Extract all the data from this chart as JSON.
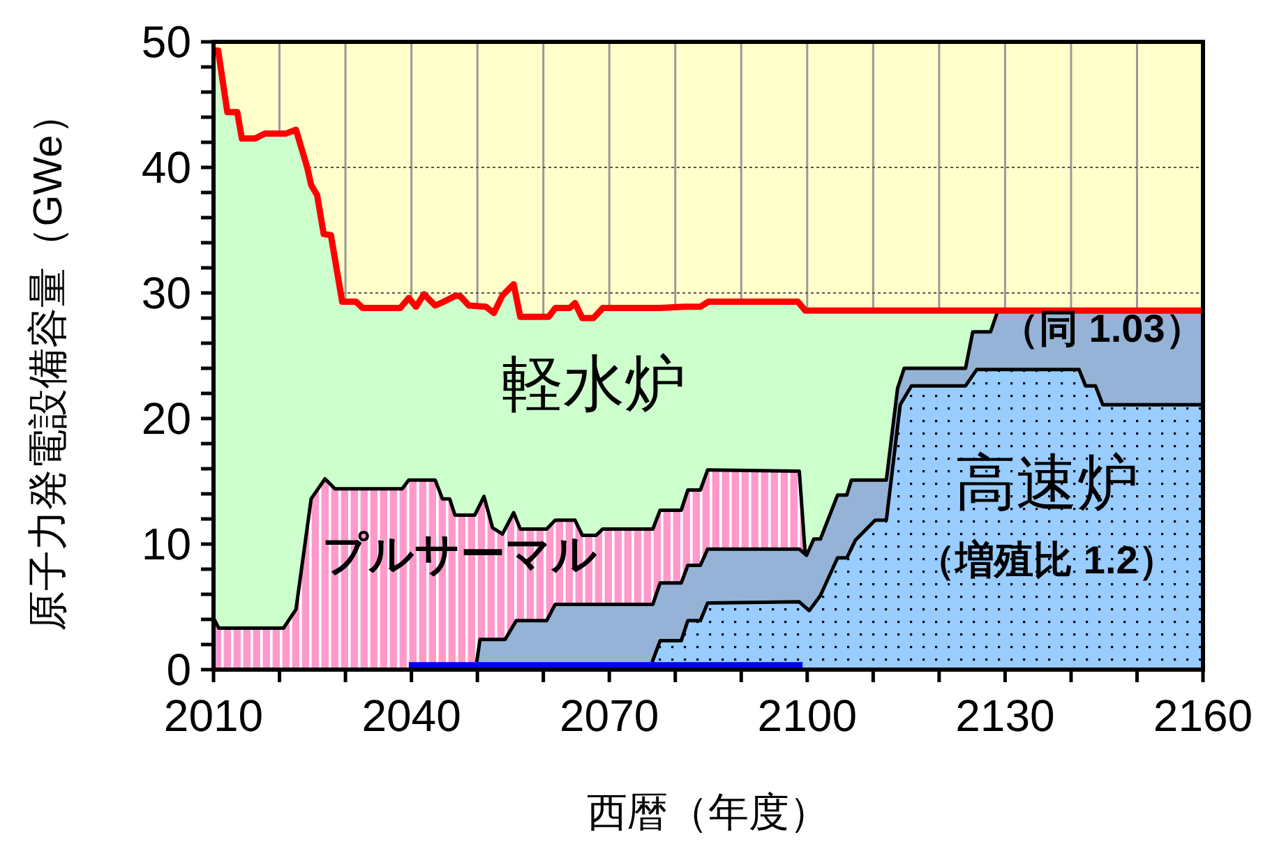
{
  "chart_data": {
    "type": "area",
    "xlabel": "西暦（年度）",
    "ylabel": "原子力発電設備容量（GWe）",
    "xlim": [
      2010,
      2160
    ],
    "xticks": [
      2010,
      {
        "value": 2020,
        "label": null
      },
      {
        "value": 2030,
        "label": null
      },
      2040,
      {
        "value": 2050,
        "label": null
      },
      {
        "value": 2060,
        "label": null
      },
      2070,
      {
        "value": 2080,
        "label": null
      },
      {
        "value": 2090,
        "label": null
      },
      2100,
      {
        "value": 2110,
        "label": null
      },
      {
        "value": 2120,
        "label": null
      },
      2130,
      {
        "value": 2140,
        "label": null
      },
      {
        "value": 2150,
        "label": null
      },
      2160
    ],
    "ylim": [
      0,
      50
    ],
    "yticks": [
      0,
      {
        "value": 2,
        "label": null
      },
      {
        "value": 4,
        "label": null
      },
      {
        "value": 6,
        "label": null
      },
      {
        "value": 8,
        "label": null
      },
      10,
      {
        "value": 12,
        "label": null
      },
      {
        "value": 14,
        "label": null
      },
      {
        "value": 16,
        "label": null
      },
      {
        "value": 18,
        "label": null
      },
      20,
      {
        "value": 22,
        "label": null
      },
      {
        "value": 24,
        "label": null
      },
      {
        "value": 26,
        "label": null
      },
      {
        "value": 28,
        "label": null
      },
      30,
      {
        "value": 32,
        "label": null
      },
      {
        "value": 34,
        "label": null
      },
      {
        "value": 36,
        "label": null
      },
      {
        "value": 38,
        "label": null
      },
      40,
      {
        "value": 42,
        "label": null
      },
      {
        "value": 44,
        "label": null
      },
      {
        "value": 46,
        "label": null
      },
      {
        "value": 48,
        "label": null
      },
      50
    ],
    "grid": true,
    "series": [
      {
        "name": "軽水炉",
        "color": "#ccffcc",
        "x": [
          2010,
          2010.7,
          2012.1,
          2013.6,
          2014.3,
          2016.3,
          2017.8,
          2021,
          2022.5,
          2024.2,
          2024.8,
          2025.7,
          2026.7,
          2027.8,
          2029.5,
          2031.6,
          2032.6,
          2038.3,
          2039.6,
          2040.7,
          2041.9,
          2043.6,
          2044.9,
          2046.8,
          2047.5,
          2048.7,
          2051.3,
          2052.5,
          2053.8,
          2055.5,
          2056.5,
          2060.8,
          2061.8,
          2064,
          2064.8,
          2065.9,
          2067.6,
          2069,
          2077.7,
          2081.3,
          2083.8,
          2085,
          2098.6,
          2099.7,
          2160
        ],
        "values": [
          49.3,
          49.3,
          44.4,
          44.4,
          42.3,
          42.3,
          42.7,
          42.7,
          43.0,
          40,
          38.6,
          37.8,
          34.7,
          34.6,
          29.3,
          29.3,
          28.8,
          28.8,
          29.6,
          28.9,
          29.9,
          29.0,
          29.3,
          29.8,
          29.7,
          29.0,
          28.9,
          28.4,
          29.8,
          30.7,
          28.1,
          28.1,
          28.8,
          28.8,
          29.2,
          28.0,
          28.0,
          28.8,
          28.8,
          28.9,
          28.9,
          29.3,
          29.3,
          28.6,
          28.6
        ]
      },
      {
        "name": "プルサーマル",
        "color": "#ff99cc",
        "x": [
          2010,
          2010.8,
          2020.6,
          2022.5,
          2024.8,
          2026.9,
          2028.4,
          2038.6,
          2039.6,
          2043.6,
          2044.7,
          2045.8,
          2046.6,
          2049.6,
          2051,
          2052.3,
          2053.8,
          2055.5,
          2056.5,
          2060.5,
          2061.8,
          2064.8,
          2065.9,
          2068,
          2069,
          2076.6,
          2077.7,
          2080.9,
          2081.9,
          2083.8,
          2084.9,
          2098.8,
          2099.7
        ],
        "values": [
          4.1,
          3.3,
          3.3,
          4.8,
          13.6,
          15.2,
          14.4,
          14.4,
          15.1,
          15.1,
          13.6,
          13.6,
          12.3,
          12.3,
          13.8,
          11.3,
          10.8,
          12.5,
          11.2,
          11.2,
          11.9,
          11.9,
          10.7,
          10.7,
          11.2,
          11.2,
          12.7,
          12.7,
          14.3,
          14.3,
          15.9,
          15.8,
          9.2
        ]
      },
      {
        "name": "（同 1.03）",
        "color": "#95b3d7",
        "x": [
          2049.9,
          2050.4,
          2054.2,
          2055.9,
          2060.5,
          2061.8,
          2076.6,
          2077.7,
          2080.9,
          2081.9,
          2083.8,
          2084.9,
          2098.8,
          2099.9,
          2101,
          2102,
          2104.6,
          2106,
          2106.7,
          2112,
          2113.7,
          2114.7,
          2124,
          2125.1,
          2127.8,
          2128.9,
          2160
        ],
        "values": [
          0.6,
          2.4,
          2.4,
          3.9,
          3.9,
          5.2,
          5.2,
          6.9,
          6.9,
          8.3,
          8.3,
          9.6,
          9.6,
          9.1,
          10.4,
          10.4,
          13.9,
          13.9,
          15.1,
          15.1,
          22.4,
          24.0,
          24.0,
          26.9,
          26.9,
          28.6,
          28.6
        ]
      },
      {
        "name": "高速炉（増殖比 1.2）",
        "color": "#99ccff",
        "x": [
          2076.5,
          2077.7,
          2080.9,
          2081.9,
          2083.8,
          2084.9,
          2098.8,
          2100.3,
          2102,
          2104.6,
          2106,
          2107.3,
          2110.3,
          2112,
          2114.1,
          2115.8,
          2124,
          2125.7,
          2141.2,
          2142.2,
          2143.7,
          2144.8,
          2160
        ],
        "values": [
          0.6,
          2.3,
          2.3,
          3.9,
          3.9,
          5.3,
          5.4,
          4.7,
          5.9,
          8.9,
          8.9,
          10.3,
          11.9,
          11.9,
          21.1,
          22.6,
          22.6,
          23.9,
          23.9,
          22.6,
          22.6,
          21.1,
          21.1
        ]
      },
      {
        "color": "#0000ff",
        "x": [
          2039.6,
          2099.3
        ],
        "values": [
          0.6,
          0.6
        ]
      },
      {
        "type": "line",
        "color": "#ff0000",
        "x": [
          2010,
          2010.7,
          2012.1,
          2013.6,
          2014.3,
          2016.3,
          2017.8,
          2021,
          2022.5,
          2024.2,
          2024.8,
          2025.7,
          2026.7,
          2027.8,
          2029.5,
          2031.6,
          2032.6,
          2038.3,
          2039.6,
          2040.7,
          2041.9,
          2043.6,
          2044.9,
          2046.8,
          2047.5,
          2048.7,
          2051.3,
          2052.5,
          2053.8,
          2055.5,
          2056.5,
          2060.8,
          2061.8,
          2064,
          2064.8,
          2065.9,
          2067.6,
          2069,
          2077.7,
          2081.3,
          2083.8,
          2085,
          2098.6,
          2099.7,
          2160
        ],
        "values": [
          49.3,
          49.3,
          44.4,
          44.4,
          42.3,
          42.3,
          42.7,
          42.7,
          43.0,
          40,
          38.6,
          37.8,
          34.7,
          34.6,
          29.3,
          29.3,
          28.8,
          28.8,
          29.6,
          28.9,
          29.9,
          29.0,
          29.3,
          29.8,
          29.7,
          29.0,
          28.9,
          28.4,
          29.8,
          30.7,
          28.1,
          28.1,
          28.8,
          28.8,
          29.2,
          28.0,
          28.0,
          28.8,
          28.8,
          28.9,
          28.9,
          29.3,
          29.3,
          28.6,
          28.6
        ]
      }
    ]
  }
}
